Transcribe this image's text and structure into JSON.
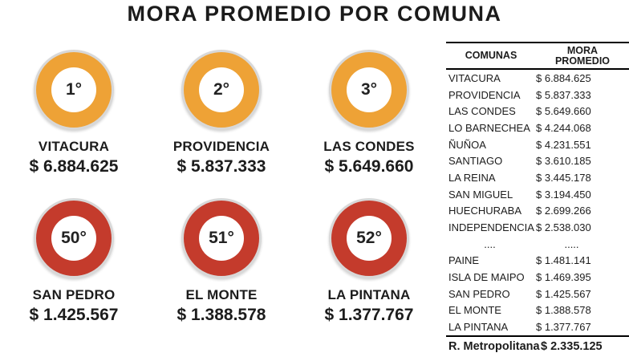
{
  "title": "MORA PROMEDIO POR COMUNA",
  "colors": {
    "top_rank_fill": "#EEA236",
    "bottom_rank_fill": "#C43B2C",
    "ring": "#D8D8D8",
    "text": "#1B1B1B"
  },
  "badges": {
    "top": [
      {
        "rank": "1°",
        "comuna": "VITACURA",
        "value": "$ 6.884.625"
      },
      {
        "rank": "2°",
        "comuna": "PROVIDENCIA",
        "value": "$ 5.837.333"
      },
      {
        "rank": "3°",
        "comuna": "LAS CONDES",
        "value": "$ 5.649.660"
      }
    ],
    "bottom": [
      {
        "rank": "50°",
        "comuna": "SAN PEDRO",
        "value": "$ 1.425.567"
      },
      {
        "rank": "51°",
        "comuna": "EL MONTE",
        "value": "$ 1.388.578"
      },
      {
        "rank": "52°",
        "comuna": "LA PINTANA",
        "value": "$ 1.377.767"
      }
    ]
  },
  "table": {
    "headers": [
      "COMUNAS",
      "MORA PROMEDIO"
    ],
    "rows": [
      {
        "comuna": "VITACURA",
        "value": "$ 6.884.625"
      },
      {
        "comuna": "PROVIDENCIA",
        "value": "$ 5.837.333"
      },
      {
        "comuna": "LAS CONDES",
        "value": "$ 5.649.660"
      },
      {
        "comuna": "LO BARNECHEA",
        "value": "$ 4.244.068"
      },
      {
        "comuna": "ÑUÑOA",
        "value": "$ 4.231.551"
      },
      {
        "comuna": "SANTIAGO",
        "value": "$ 3.610.185"
      },
      {
        "comuna": "LA REINA",
        "value": "$ 3.445.178"
      },
      {
        "comuna": "SAN MIGUEL",
        "value": "$ 3.194.450"
      },
      {
        "comuna": "HUECHURABA",
        "value": "$ 2.699.266"
      },
      {
        "comuna": "INDEPENDENCIA",
        "value": "$ 2.538.030"
      },
      {
        "comuna": "....",
        "value": ".....",
        "ellipsis": true
      },
      {
        "comuna": "PAINE",
        "value": "$ 1.481.141"
      },
      {
        "comuna": "ISLA DE MAIPO",
        "value": "$ 1.469.395"
      },
      {
        "comuna": "SAN PEDRO",
        "value": "$ 1.425.567"
      },
      {
        "comuna": "EL MONTE",
        "value": "$ 1.388.578"
      },
      {
        "comuna": "LA PINTANA",
        "value": "$ 1.377.767"
      }
    ],
    "footer": {
      "label": "R. Metropolitana",
      "value": "$ 2.335.125"
    }
  },
  "chart_data": {
    "type": "table",
    "title": "MORA PROMEDIO POR COMUNA",
    "columns": [
      "COMUNAS",
      "MORA PROMEDIO"
    ],
    "rows": [
      [
        "VITACURA",
        6884625
      ],
      [
        "PROVIDENCIA",
        5837333
      ],
      [
        "LAS CONDES",
        5649660
      ],
      [
        "LO BARNECHEA",
        4244068
      ],
      [
        "ÑUÑOA",
        4231551
      ],
      [
        "SANTIAGO",
        3610185
      ],
      [
        "LA REINA",
        3445178
      ],
      [
        "SAN MIGUEL",
        3194450
      ],
      [
        "HUECHURABA",
        2699266
      ],
      [
        "INDEPENDENCIA",
        2538030
      ],
      [
        "PAINE",
        1481141
      ],
      [
        "ISLA DE MAIPO",
        1469395
      ],
      [
        "SAN PEDRO",
        1425567
      ],
      [
        "EL MONTE",
        1388578
      ],
      [
        "LA PINTANA",
        1377767
      ]
    ],
    "rows_omitted_between": [
      "INDEPENDENCIA",
      "PAINE"
    ],
    "regional_total": {
      "label": "R. Metropolitana",
      "value": 2335125
    },
    "highlighted_ranks": [
      {
        "rank": 1,
        "comuna": "VITACURA",
        "value": 6884625,
        "color": "#EEA236"
      },
      {
        "rank": 2,
        "comuna": "PROVIDENCIA",
        "value": 5837333,
        "color": "#EEA236"
      },
      {
        "rank": 3,
        "comuna": "LAS CONDES",
        "value": 5649660,
        "color": "#EEA236"
      },
      {
        "rank": 50,
        "comuna": "SAN PEDRO",
        "value": 1425567,
        "color": "#C43B2C"
      },
      {
        "rank": 51,
        "comuna": "EL MONTE",
        "value": 1388578,
        "color": "#C43B2C"
      },
      {
        "rank": 52,
        "comuna": "LA PINTANA",
        "value": 1377767,
        "color": "#C43B2C"
      }
    ],
    "currency": "CLP"
  }
}
